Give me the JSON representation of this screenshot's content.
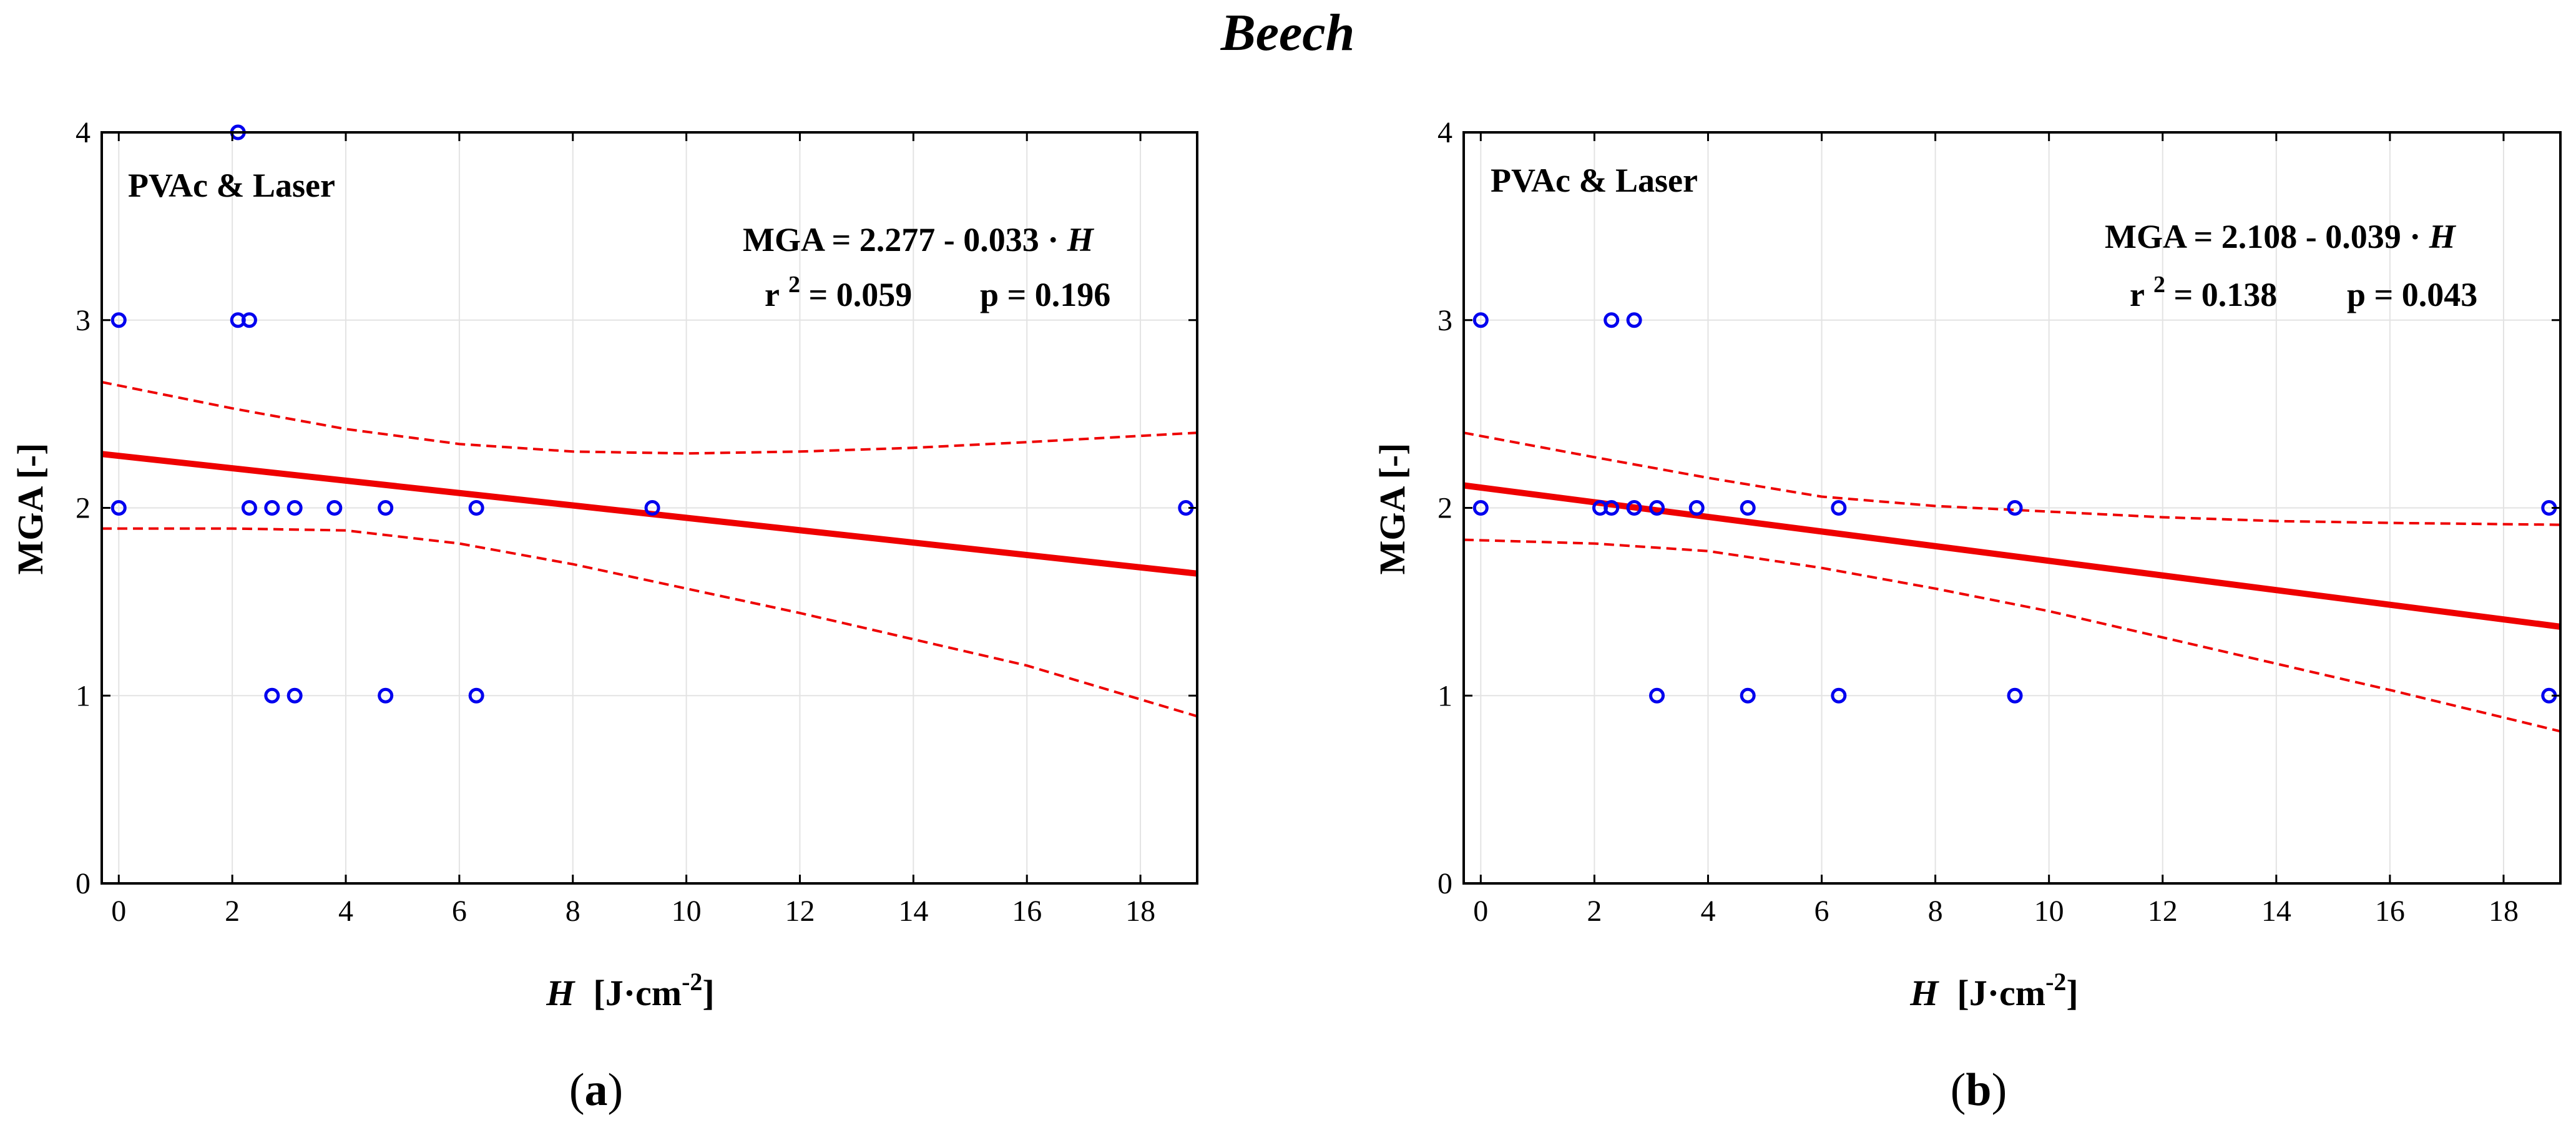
{
  "figure_title": "Beech",
  "chart_data": [
    {
      "type": "scatter",
      "panel_label": "(a)",
      "panel_letter": "a",
      "annotation": "PVAc & Laser",
      "equation": {
        "prefix": "MGA = 2.277 - 0.033 · ",
        "var": "H"
      },
      "stats": {
        "r_text": "r",
        "sup": "2",
        "r2": " = 0.059",
        "p": "p = 0.196"
      },
      "xlabel": {
        "var": "H",
        "unit": "[J·cm",
        "sup": "-2",
        "close": "]"
      },
      "ylabel": "MGA [-]",
      "xlim": [
        -0.3,
        19
      ],
      "ylim": [
        0,
        4
      ],
      "xticks": [
        0,
        2,
        4,
        6,
        8,
        10,
        12,
        14,
        16,
        18
      ],
      "yticks": [
        0,
        1,
        2,
        3,
        4
      ],
      "grid": true,
      "points": [
        {
          "x": 0,
          "y": 3
        },
        {
          "x": 0,
          "y": 2
        },
        {
          "x": 2.1,
          "y": 4
        },
        {
          "x": 2.1,
          "y": 3
        },
        {
          "x": 2.3,
          "y": 3
        },
        {
          "x": 2.3,
          "y": 2
        },
        {
          "x": 2.7,
          "y": 2
        },
        {
          "x": 3.1,
          "y": 2
        },
        {
          "x": 3.8,
          "y": 2
        },
        {
          "x": 4.7,
          "y": 2
        },
        {
          "x": 6.3,
          "y": 2
        },
        {
          "x": 9.4,
          "y": 2
        },
        {
          "x": 18.8,
          "y": 2
        },
        {
          "x": 2.7,
          "y": 1
        },
        {
          "x": 3.1,
          "y": 1
        },
        {
          "x": 4.7,
          "y": 1
        },
        {
          "x": 6.3,
          "y": 1
        }
      ],
      "fit": {
        "intercept": 2.277,
        "slope": -0.033
      },
      "ci_upper": [
        [
          -0.3,
          2.67
        ],
        [
          2,
          2.53
        ],
        [
          4,
          2.42
        ],
        [
          6,
          2.34
        ],
        [
          8,
          2.3
        ],
        [
          10,
          2.29
        ],
        [
          12,
          2.3
        ],
        [
          14,
          2.32
        ],
        [
          16,
          2.35
        ],
        [
          19,
          2.4
        ]
      ],
      "ci_lower": [
        [
          -0.3,
          1.89
        ],
        [
          2,
          1.89
        ],
        [
          4,
          1.88
        ],
        [
          6,
          1.81
        ],
        [
          8,
          1.7
        ],
        [
          10,
          1.57
        ],
        [
          12,
          1.44
        ],
        [
          14,
          1.3
        ],
        [
          16,
          1.16
        ],
        [
          19,
          0.89
        ]
      ],
      "colors": {
        "points": "#0000ee",
        "fit": "#ee0000",
        "ci": "#ee0000",
        "grid": "#e3e3e3"
      }
    },
    {
      "type": "scatter",
      "panel_label": "(b)",
      "panel_letter": "b",
      "annotation": "PVAc & Laser",
      "equation": {
        "prefix": "MGA = 2.108 - 0.039 · ",
        "var": "H"
      },
      "stats": {
        "r_text": "r",
        "sup": "2",
        "r2": " = 0.138",
        "p": "p = 0.043"
      },
      "xlabel": {
        "var": "H",
        "unit": "[J·cm",
        "sup": "-2",
        "close": "]"
      },
      "ylabel": "MGA [-]",
      "xlim": [
        -0.3,
        19
      ],
      "ylim": [
        0,
        4
      ],
      "xticks": [
        0,
        2,
        4,
        6,
        8,
        10,
        12,
        14,
        16,
        18
      ],
      "yticks": [
        0,
        1,
        2,
        3,
        4
      ],
      "grid": true,
      "points": [
        {
          "x": 0,
          "y": 3
        },
        {
          "x": 0,
          "y": 2
        },
        {
          "x": 2.3,
          "y": 3
        },
        {
          "x": 2.7,
          "y": 3
        },
        {
          "x": 2.1,
          "y": 2
        },
        {
          "x": 2.3,
          "y": 2
        },
        {
          "x": 2.7,
          "y": 2
        },
        {
          "x": 3.1,
          "y": 2
        },
        {
          "x": 3.8,
          "y": 2
        },
        {
          "x": 4.7,
          "y": 2
        },
        {
          "x": 6.3,
          "y": 2
        },
        {
          "x": 9.4,
          "y": 2
        },
        {
          "x": 18.8,
          "y": 2
        },
        {
          "x": 3.1,
          "y": 1
        },
        {
          "x": 4.7,
          "y": 1
        },
        {
          "x": 6.3,
          "y": 1
        },
        {
          "x": 9.4,
          "y": 1
        },
        {
          "x": 18.8,
          "y": 1
        }
      ],
      "fit": {
        "intercept": 2.108,
        "slope": -0.039
      },
      "ci_upper": [
        [
          -0.3,
          2.4
        ],
        [
          2,
          2.27
        ],
        [
          4,
          2.16
        ],
        [
          6,
          2.06
        ],
        [
          8,
          2.01
        ],
        [
          10,
          1.98
        ],
        [
          12,
          1.95
        ],
        [
          14,
          1.93
        ],
        [
          16,
          1.92
        ],
        [
          19,
          1.91
        ]
      ],
      "ci_lower": [
        [
          -0.3,
          1.83
        ],
        [
          2,
          1.81
        ],
        [
          4,
          1.77
        ],
        [
          6,
          1.68
        ],
        [
          8,
          1.57
        ],
        [
          10,
          1.45
        ],
        [
          12,
          1.31
        ],
        [
          14,
          1.17
        ],
        [
          16,
          1.03
        ],
        [
          19,
          0.81
        ]
      ],
      "colors": {
        "points": "#0000ee",
        "fit": "#ee0000",
        "ci": "#ee0000",
        "grid": "#e3e3e3"
      }
    }
  ]
}
